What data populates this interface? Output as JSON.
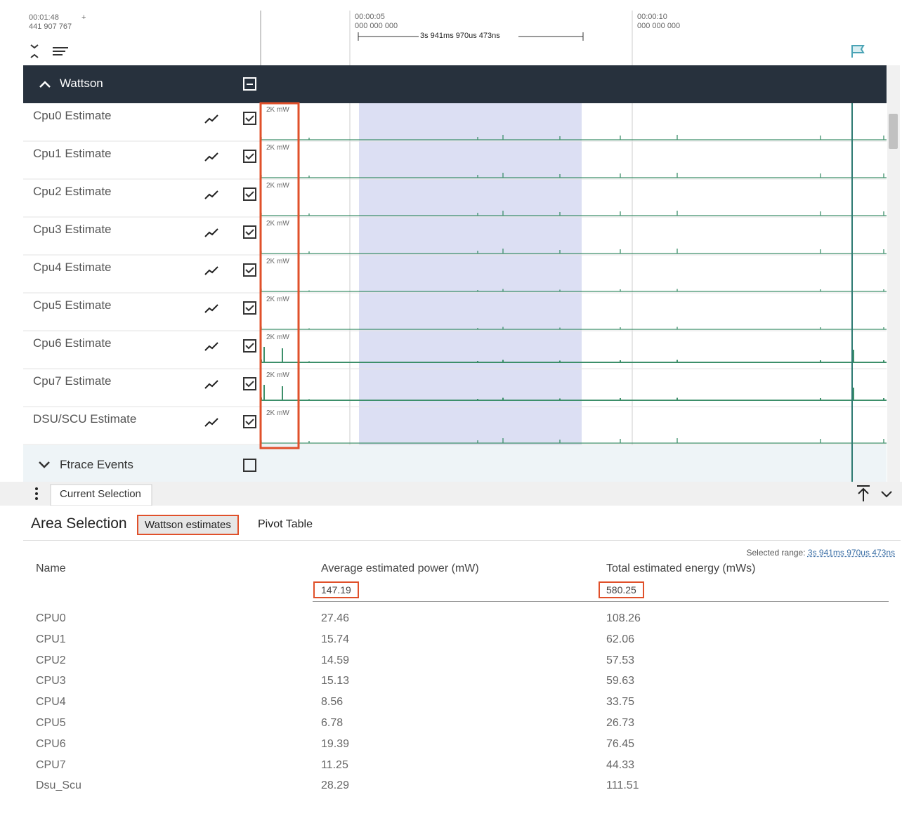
{
  "timeline": {
    "cursor_time": "00:01:48",
    "cursor_plus": "+",
    "cursor_sub": "441 907 767",
    "ticks": [
      {
        "time": "00:00:05",
        "sub": "000 000 000"
      },
      {
        "time": "00:00:10",
        "sub": "000 000 000"
      }
    ],
    "range": "3s 941ms 970us 473ns"
  },
  "tracks": {
    "group": "Wattson",
    "items": [
      {
        "name": "Cpu0 Estimate",
        "scale": "2K mW"
      },
      {
        "name": "Cpu1 Estimate",
        "scale": "2K mW"
      },
      {
        "name": "Cpu2 Estimate",
        "scale": "2K mW"
      },
      {
        "name": "Cpu3 Estimate",
        "scale": "2K mW"
      },
      {
        "name": "Cpu4 Estimate",
        "scale": "2K mW"
      },
      {
        "name": "Cpu5 Estimate",
        "scale": "2K mW"
      },
      {
        "name": "Cpu6 Estimate",
        "scale": "2K mW"
      },
      {
        "name": "Cpu7 Estimate",
        "scale": "2K mW"
      },
      {
        "name": "DSU/SCU Estimate",
        "scale": "2K mW"
      }
    ],
    "collapsed_group": "Ftrace Events"
  },
  "panel": {
    "tab": "Current Selection",
    "title": "Area Selection",
    "tabs": [
      "Wattson estimates",
      "Pivot Table"
    ],
    "selected_range_label": "Selected range:",
    "selected_range": "3s 941ms 970us 473ns",
    "table": {
      "headers": [
        "Name",
        "Average estimated power (mW)",
        "Total estimated energy (mWs)"
      ],
      "totals": [
        "147.19",
        "580.25"
      ],
      "rows": [
        [
          "CPU0",
          "27.46",
          "108.26"
        ],
        [
          "CPU1",
          "15.74",
          "62.06"
        ],
        [
          "CPU2",
          "14.59",
          "57.53"
        ],
        [
          "CPU3",
          "15.13",
          "59.63"
        ],
        [
          "CPU4",
          "8.56",
          "33.75"
        ],
        [
          "CPU5",
          "6.78",
          "26.73"
        ],
        [
          "CPU6",
          "19.39",
          "76.45"
        ],
        [
          "CPU7",
          "11.25",
          "44.33"
        ],
        [
          "Dsu_Scu",
          "28.29",
          "111.51"
        ]
      ]
    }
  }
}
